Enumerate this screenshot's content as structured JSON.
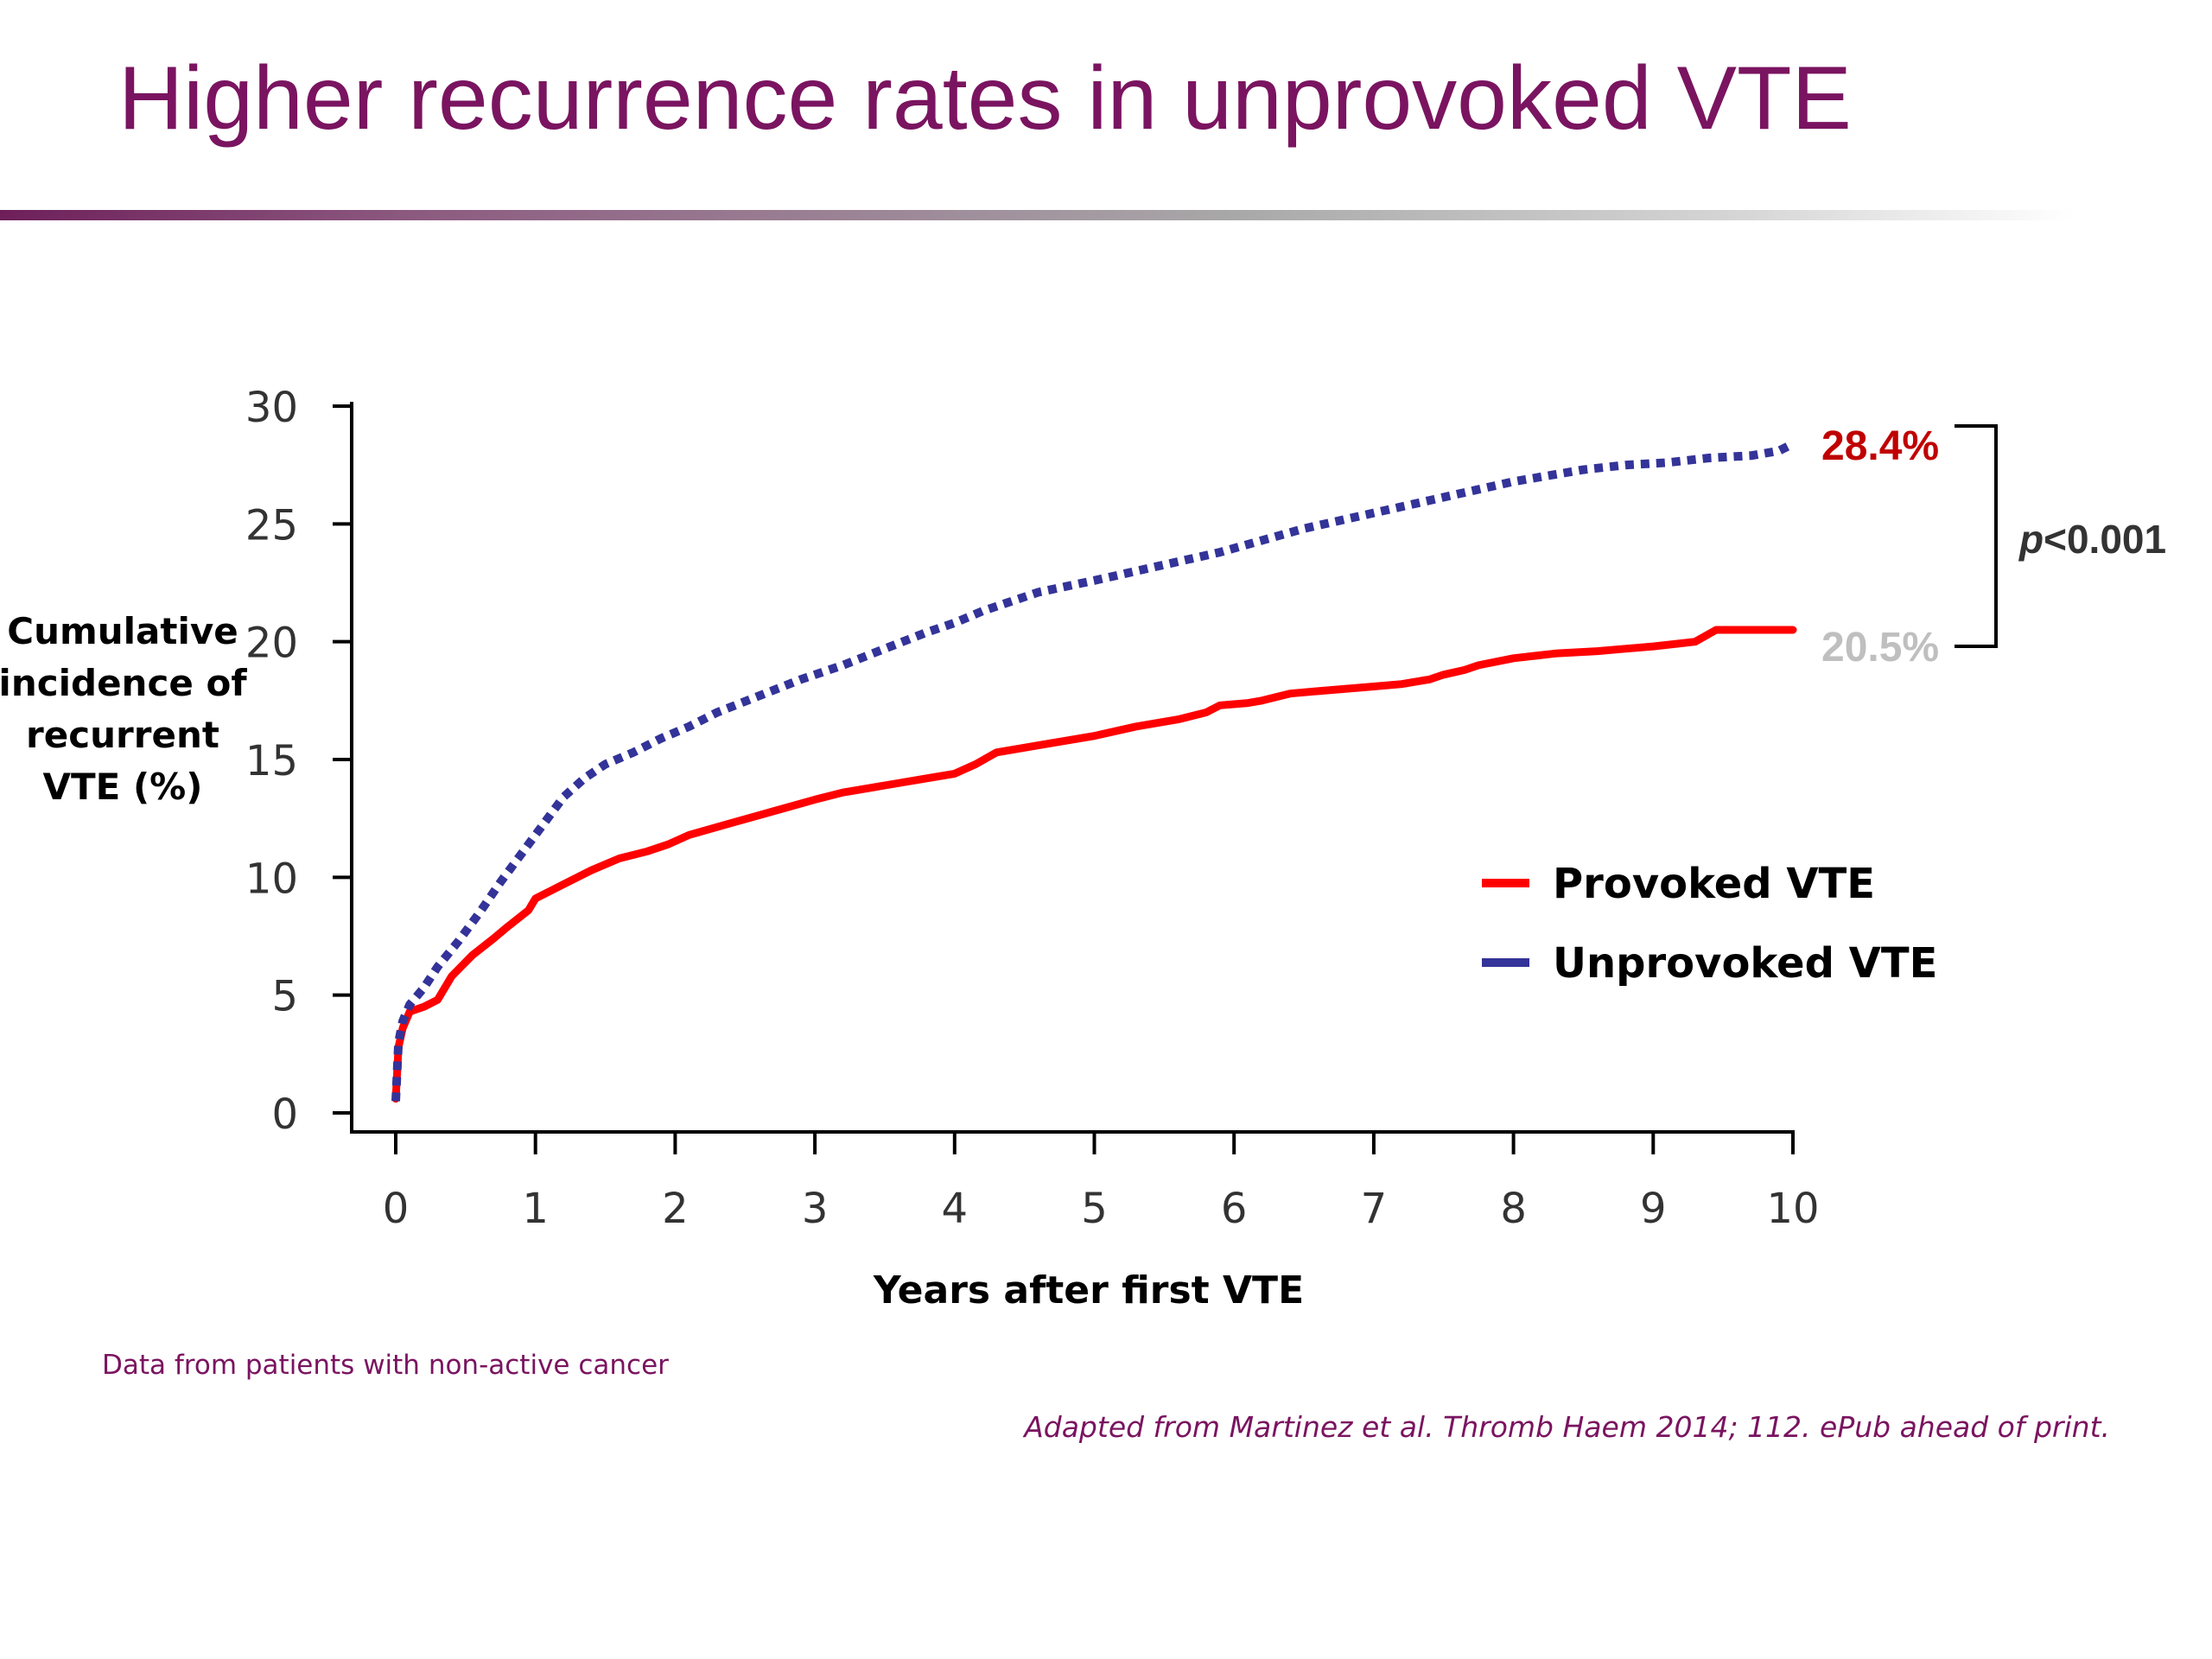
{
  "slide": {
    "title": "Higher recurrence rates in unprovoked VTE",
    "footnote": "Data from patients with non-active cancer",
    "source": "Adapted from Martinez et al. Thromb Haem 2014; 112. ePub ahead of print."
  },
  "chart_data": {
    "type": "line",
    "title": "",
    "xlabel": "Years after first VTE",
    "ylabel_lines": [
      "Cumulative",
      "incidence of",
      "recurrent",
      "VTE (%)"
    ],
    "xlim": [
      0,
      10
    ],
    "ylim": [
      0,
      30
    ],
    "xticks": [
      "0",
      "1",
      "2",
      "3",
      "4",
      "5",
      "6",
      "7",
      "8",
      "9",
      "10"
    ],
    "yticks": [
      "0",
      "5",
      "10",
      "15",
      "20",
      "25",
      "30"
    ],
    "grid": false,
    "legend_position": "center-right",
    "series": [
      {
        "name": "Provoked VTE",
        "color": "#ff0000",
        "style": "solid",
        "x": [
          0,
          0.02,
          0.05,
          0.1,
          0.2,
          0.3,
          0.4,
          0.55,
          0.7,
          0.8,
          0.95,
          1.0,
          1.2,
          1.4,
          1.6,
          1.8,
          1.95,
          2.1,
          2.4,
          2.7,
          3.0,
          3.2,
          3.5,
          3.8,
          4.0,
          4.15,
          4.3,
          4.6,
          5.0,
          5.3,
          5.6,
          5.8,
          5.9,
          6.1,
          6.2,
          6.4,
          6.6,
          7.0,
          7.2,
          7.4,
          7.5,
          7.65,
          7.75,
          8.0,
          8.3,
          8.6,
          8.8,
          9.0,
          9.3,
          9.45,
          9.7,
          10.0
        ],
        "y": [
          0.6,
          2.8,
          3.6,
          4.3,
          4.5,
          4.8,
          5.8,
          6.7,
          7.4,
          7.9,
          8.6,
          9.1,
          9.7,
          10.3,
          10.8,
          11.1,
          11.4,
          11.8,
          12.3,
          12.8,
          13.3,
          13.6,
          13.9,
          14.2,
          14.4,
          14.8,
          15.3,
          15.6,
          16.0,
          16.4,
          16.7,
          17.0,
          17.3,
          17.4,
          17.5,
          17.8,
          17.9,
          18.1,
          18.2,
          18.4,
          18.6,
          18.8,
          19.0,
          19.3,
          19.5,
          19.6,
          19.7,
          19.8,
          20.0,
          20.5,
          20.5,
          20.5
        ],
        "end_label": "20.5%",
        "end_label_color": "#bfbfbf"
      },
      {
        "name": "Unprovoked VTE",
        "color": "#333399",
        "style": "dotted",
        "x": [
          0,
          0.02,
          0.05,
          0.1,
          0.2,
          0.3,
          0.45,
          0.6,
          0.75,
          0.9,
          1.05,
          1.2,
          1.35,
          1.5,
          1.7,
          1.9,
          2.1,
          2.3,
          2.6,
          2.9,
          3.2,
          3.5,
          3.8,
          4.0,
          4.2,
          4.4,
          4.6,
          5.0,
          5.3,
          5.6,
          5.9,
          6.2,
          6.5,
          6.8,
          7.1,
          7.4,
          7.7,
          8.0,
          8.3,
          8.5,
          8.8,
          9.1,
          9.4,
          9.7,
          9.9,
          10.0
        ],
        "y": [
          0.5,
          3.0,
          3.9,
          4.6,
          5.3,
          6.2,
          7.3,
          8.5,
          9.8,
          11.0,
          12.2,
          13.4,
          14.2,
          14.8,
          15.3,
          15.9,
          16.4,
          17.0,
          17.7,
          18.4,
          19.0,
          19.7,
          20.4,
          20.8,
          21.3,
          21.7,
          22.1,
          22.6,
          23.0,
          23.4,
          23.8,
          24.3,
          24.8,
          25.2,
          25.6,
          26.0,
          26.4,
          26.8,
          27.1,
          27.3,
          27.5,
          27.6,
          27.8,
          27.9,
          28.1,
          28.4
        ],
        "end_label": "28.4%",
        "end_label_color": "#c00000"
      }
    ],
    "annotation": "p<0.001"
  }
}
